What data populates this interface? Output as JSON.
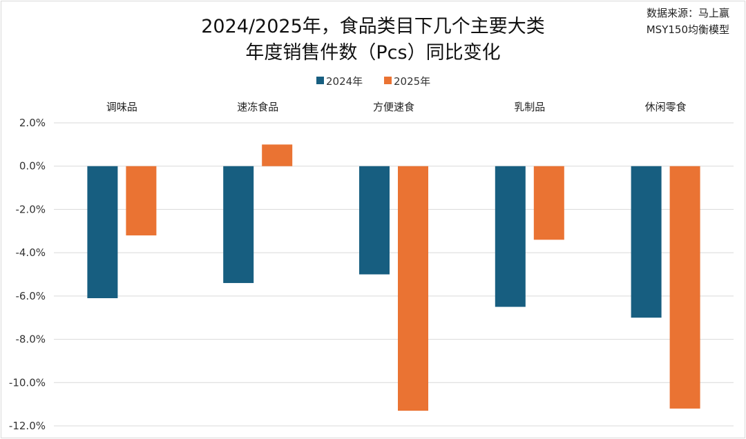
{
  "title_line1": "2024/2025年，食品类目下几个主要大类",
  "title_line2": "年度销售件数（Pcs）同比变化",
  "source_line1": "数据来源：马上赢",
  "source_line2": "MSY150均衡模型",
  "colors": {
    "2024年": "#175e80",
    "2025年": "#ea7333"
  },
  "chart_data": {
    "type": "bar",
    "title": "2024/2025年，食品类目下几个主要大类 年度销售件数（Pcs）同比变化",
    "categories": [
      "调味品",
      "速冻食品",
      "方便速食",
      "乳制品",
      "休闲零食"
    ],
    "series": [
      {
        "name": "2024年",
        "values": [
          -6.1,
          -5.4,
          -5.0,
          -6.5,
          -7.0
        ]
      },
      {
        "name": "2025年",
        "values": [
          -3.2,
          1.0,
          -11.3,
          -3.4,
          -11.2
        ]
      }
    ],
    "ylim": [
      -12,
      2
    ],
    "yticks": [
      "2.0%",
      "0.0%",
      "-2.0%",
      "-4.0%",
      "-6.0%",
      "-8.0%",
      "-10.0%",
      "-12.0%"
    ],
    "unit": "%",
    "grid": true,
    "legend": "top-center",
    "category_labels_position": "top"
  }
}
